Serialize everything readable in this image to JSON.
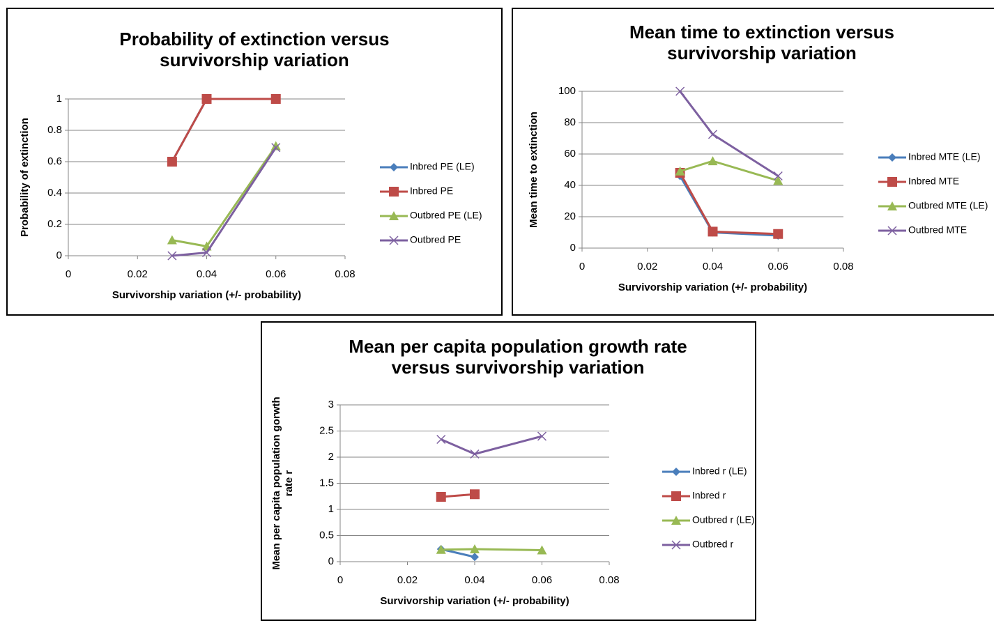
{
  "chart_data": [
    {
      "type": "line",
      "title": [
        "Probability of extinction versus",
        "survivorship variation"
      ],
      "x_label": "Survivorship variation (+/- probability)",
      "y_label": [
        "Probability of extinction"
      ],
      "xlim": [
        0,
        0.08
      ],
      "xticks": [
        0,
        0.02,
        0.04,
        0.06,
        0.08
      ],
      "ylim": [
        0,
        1
      ],
      "yticks": [
        0,
        0.2,
        0.4,
        0.6,
        0.8,
        1
      ],
      "grid": true,
      "x": [
        0.03,
        0.04,
        0.06
      ],
      "series": [
        {
          "name": "Inbred PE (LE)",
          "color": "#4a7ebb",
          "marker": "diamond",
          "values": [
            0.6,
            1,
            1
          ]
        },
        {
          "name": "Inbred PE",
          "color": "#be4b48",
          "marker": "square",
          "values": [
            0.6,
            1,
            1
          ]
        },
        {
          "name": "Outbred PE (LE)",
          "color": "#98b954",
          "marker": "triangle",
          "values": [
            0.1,
            0.06,
            0.7
          ]
        },
        {
          "name": "Outbred PE",
          "color": "#7d60a0",
          "marker": "x",
          "values": [
            0,
            0.02,
            0.69
          ]
        }
      ]
    },
    {
      "type": "line",
      "title": [
        "Mean time to extinction versus",
        "survivorship variation"
      ],
      "x_label": "Survivorship variation (+/- probability)",
      "y_label": [
        "Mean time to extinction"
      ],
      "xlim": [
        0,
        0.08
      ],
      "xticks": [
        0,
        0.02,
        0.04,
        0.06,
        0.08
      ],
      "ylim": [
        0,
        100
      ],
      "yticks": [
        0,
        20,
        40,
        60,
        80,
        100
      ],
      "grid": true,
      "x": [
        0.03,
        0.04,
        0.06
      ],
      "series": [
        {
          "name": "Inbred MTE (LE)",
          "color": "#4a7ebb",
          "marker": "diamond",
          "values": [
            46,
            10,
            8
          ]
        },
        {
          "name": "Inbred MTE",
          "color": "#be4b48",
          "marker": "square",
          "values": [
            48,
            10.5,
            9
          ]
        },
        {
          "name": "Outbred MTE (LE)",
          "color": "#98b954",
          "marker": "triangle",
          "values": [
            49,
            55.5,
            43
          ]
        },
        {
          "name": "Outbred MTE",
          "color": "#7d60a0",
          "marker": "x",
          "values": [
            100,
            72.5,
            46
          ]
        }
      ]
    },
    {
      "type": "line",
      "title": [
        "Mean per capita population growth rate",
        "versus survivorship variation"
      ],
      "x_label": "Survivorship variation (+/- probability)",
      "y_label": [
        "Mean per capita population gorwth",
        "rate r"
      ],
      "xlim": [
        0,
        0.08
      ],
      "xticks": [
        0,
        0.02,
        0.04,
        0.06,
        0.08
      ],
      "ylim": [
        0,
        3
      ],
      "yticks": [
        0,
        0.5,
        1,
        1.5,
        2,
        2.5,
        3
      ],
      "grid": true,
      "x": [
        0.03,
        0.04,
        0.06
      ],
      "series": [
        {
          "name": "Inbred r (LE)",
          "color": "#4a7ebb",
          "marker": "diamond",
          "values": [
            0.24,
            0.09,
            null
          ]
        },
        {
          "name": "Inbred r",
          "color": "#be4b48",
          "marker": "square",
          "values": [
            1.24,
            1.29,
            null
          ]
        },
        {
          "name": "Outbred r (LE)",
          "color": "#98b954",
          "marker": "triangle",
          "values": [
            0.23,
            0.24,
            0.22
          ]
        },
        {
          "name": "Outbred r",
          "color": "#7d60a0",
          "marker": "x",
          "values": [
            2.34,
            2.06,
            2.4
          ]
        }
      ]
    }
  ]
}
